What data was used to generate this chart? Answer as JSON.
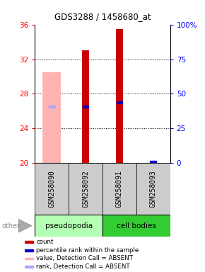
{
  "title": "GDS3288 / 1458680_at",
  "samples": [
    "GSM258090",
    "GSM258092",
    "GSM258091",
    "GSM258093"
  ],
  "ylim": [
    20,
    36
  ],
  "y_ticks_left": [
    20,
    24,
    28,
    32,
    36
  ],
  "y_ticks_right": [
    0,
    25,
    50,
    75,
    100
  ],
  "y_ticks_right_labels": [
    "0",
    "25",
    "50",
    "75",
    "100%"
  ],
  "bar_values": [
    null,
    33.0,
    35.5,
    null
  ],
  "bar_bottom": 20,
  "bar_color": "#cc0000",
  "absent_bar_values": [
    30.5,
    null,
    null,
    null
  ],
  "absent_bar_color": "#ffb3b3",
  "rank_markers": [
    26.5,
    26.5,
    27.0,
    20.2
  ],
  "rank_absent": [
    true,
    false,
    false,
    false
  ],
  "rank_marker_color_present": "#0000cc",
  "rank_marker_color_absent": "#aaaaff",
  "group_colors": [
    "#b3ffb3",
    "#33cc33"
  ],
  "group_names": [
    "pseudopodia",
    "cell bodies"
  ],
  "legend_items": [
    {
      "color": "#cc0000",
      "label": "count"
    },
    {
      "color": "#0000cc",
      "label": "percentile rank within the sample"
    },
    {
      "color": "#ffb3b3",
      "label": "value, Detection Call = ABSENT"
    },
    {
      "color": "#aaaaff",
      "label": "rank, Detection Call = ABSENT"
    }
  ],
  "sample_label_bg": "#cccccc",
  "other_label": "other",
  "arrow_color": "#999999"
}
